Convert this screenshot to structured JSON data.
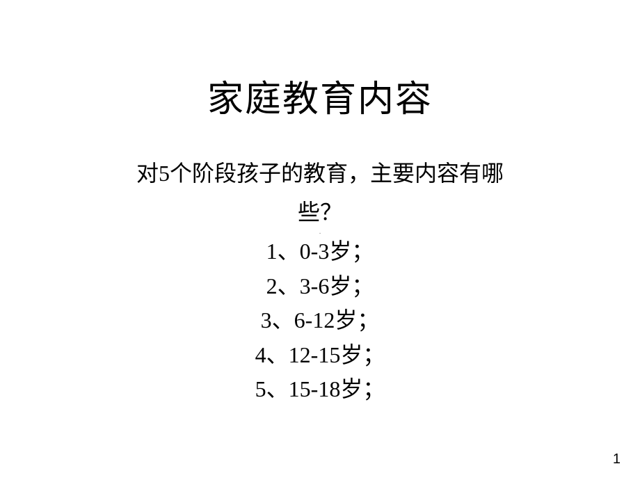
{
  "slide": {
    "title": "家庭教育内容",
    "subtitle_line1": "对5个阶段孩子的教育，主要内容有哪",
    "subtitle_line2": "些？",
    "items": [
      "1、0-3岁；",
      "2、3-6岁；",
      "3、6-12岁；",
      "4、12-15岁；",
      "5、15-18岁；"
    ],
    "page_number": "1",
    "center_marker": "·",
    "background_color": "#ffffff",
    "text_color": "#000000",
    "title_fontsize": 52,
    "body_fontsize": 32,
    "page_number_fontsize": 20
  }
}
